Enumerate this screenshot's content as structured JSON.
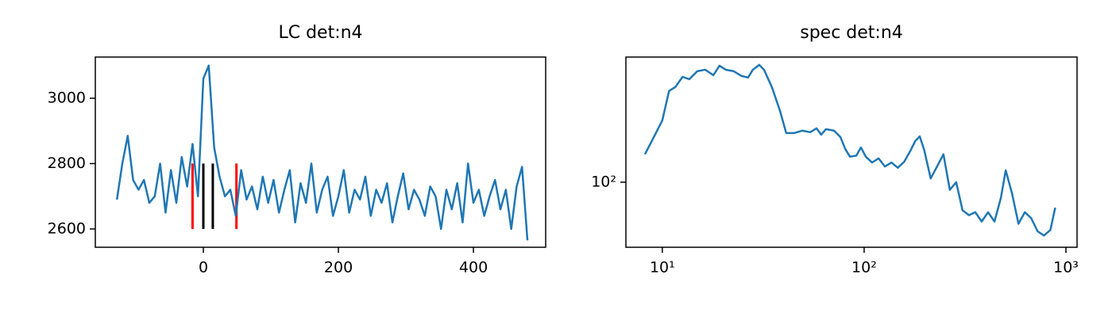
{
  "chart_data": [
    {
      "type": "line",
      "title": "LC det:n4",
      "x": [
        -128,
        -120,
        -112,
        -104,
        -96,
        -88,
        -80,
        -72,
        -64,
        -56,
        -48,
        -40,
        -32,
        -24,
        -16,
        -8,
        0,
        8,
        16,
        24,
        32,
        40,
        48,
        56,
        64,
        72,
        80,
        88,
        96,
        104,
        112,
        120,
        128,
        136,
        144,
        152,
        160,
        168,
        176,
        184,
        192,
        200,
        208,
        216,
        224,
        232,
        240,
        248,
        256,
        264,
        272,
        280,
        288,
        296,
        304,
        312,
        320,
        328,
        336,
        344,
        352,
        360,
        368,
        376,
        384,
        392,
        400,
        408,
        416,
        424,
        432,
        440,
        448,
        456,
        464,
        472,
        480
      ],
      "series": [
        {
          "color": "#1f77b4",
          "values": [
            2690,
            2800,
            2885,
            2750,
            2720,
            2750,
            2680,
            2700,
            2800,
            2650,
            2780,
            2680,
            2820,
            2730,
            2860,
            2700,
            3060,
            3100,
            2850,
            2760,
            2700,
            2720,
            2640,
            2780,
            2690,
            2730,
            2660,
            2760,
            2680,
            2750,
            2650,
            2720,
            2780,
            2620,
            2740,
            2680,
            2800,
            2650,
            2720,
            2760,
            2640,
            2700,
            2780,
            2650,
            2720,
            2690,
            2760,
            2640,
            2720,
            2680,
            2740,
            2620,
            2700,
            2770,
            2660,
            2720,
            2690,
            2640,
            2730,
            2700,
            2600,
            2720,
            2660,
            2740,
            2620,
            2800,
            2680,
            2720,
            2640,
            2700,
            2750,
            2660,
            2720,
            2600,
            2730,
            2790,
            2565
          ]
        }
      ],
      "vlines": [
        {
          "color": "#ff0000",
          "x": [
            -16,
            49
          ]
        },
        {
          "color": "#000000",
          "x": [
            0,
            14
          ]
        }
      ],
      "vline_range": [
        2600,
        2800
      ],
      "xlim": [
        -160,
        507
      ],
      "ylim": [
        2544,
        3126
      ],
      "xticks": [
        0,
        200,
        400
      ],
      "yticks": [
        2600,
        2800,
        3000
      ]
    },
    {
      "type": "line",
      "title": "spec det:n4",
      "xscale": "log",
      "yscale": "log",
      "x": [
        8.2,
        9.0,
        10,
        10.8,
        11.6,
        12.6,
        13.6,
        14.9,
        16.3,
        17.9,
        19.2,
        20.6,
        22.6,
        24.7,
        26.6,
        28.1,
        30.2,
        31.9,
        34.9,
        38.3,
        41.1,
        45.0,
        49.4,
        54.1,
        58.1,
        61.3,
        64.7,
        71.0,
        76.3,
        80.6,
        85.1,
        91.5,
        96.4,
        101.9,
        109.4,
        117.9,
        126.8,
        136.6,
        146.8,
        157.9,
        169.9,
        179.0,
        188.6,
        198.7,
        213.7,
        229.8,
        247.2,
        265.8,
        285.9,
        307.4,
        330.6,
        355.6,
        382.4,
        411.3,
        442.4,
        475.8,
        503.0,
        541.0,
        581.8,
        625.8,
        673.0,
        723.8,
        778.4,
        837.2,
        884.7
      ],
      "series": [
        {
          "color": "#1f77b4",
          "values": [
            166,
            221,
            307,
            525,
            563,
            677,
            649,
            750,
            771,
            698,
            829,
            771,
            750,
            688,
            669,
            771,
            842,
            771,
            563,
            365,
            244,
            244,
            255,
            248,
            266,
            237,
            262,
            255,
            227,
            183,
            159,
            162,
            188,
            159,
            143,
            154,
            133,
            143,
            130,
            145,
            178,
            211,
            230,
            178,
            107,
            133,
            166,
            87,
            100,
            60,
            55,
            58,
            49,
            58,
            49,
            75,
            124,
            81,
            47,
            58,
            52,
            41,
            38,
            42,
            63
          ]
        }
      ],
      "xlim": [
        6.6,
        1135
      ],
      "ylim": [
        30.7,
        970
      ],
      "xticks": [
        {
          "value": 10,
          "label": "10¹"
        },
        {
          "value": 100,
          "label": "10²"
        },
        {
          "value": 1000,
          "label": "10³"
        }
      ],
      "yticks": [
        {
          "value": 100,
          "label": "10²"
        }
      ]
    }
  ]
}
